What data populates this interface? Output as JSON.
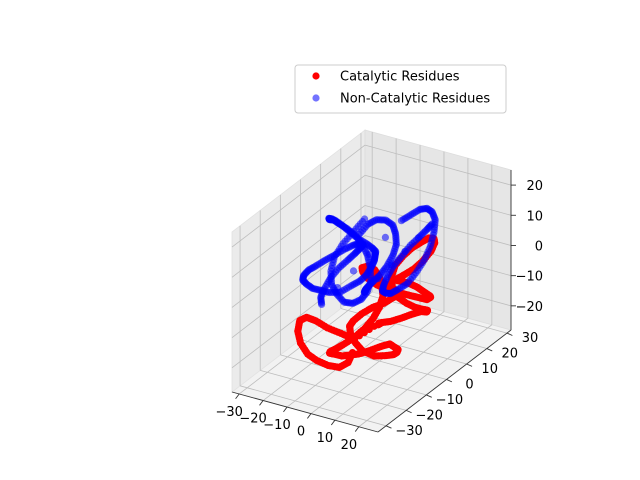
{
  "chart_data": {
    "type": "scatter",
    "projection": "3d",
    "title": "",
    "xlabel": "",
    "ylabel": "",
    "zlabel": "",
    "grid": true,
    "legend_position": "top-right",
    "axes": {
      "x": {
        "ticks": [
          -30,
          -20,
          -10,
          0,
          10,
          20
        ],
        "range": [
          -33,
          28
        ]
      },
      "y": {
        "ticks": [
          -30,
          -20,
          -10,
          0,
          10,
          20,
          30
        ],
        "range": [
          -34,
          32
        ]
      },
      "z": {
        "ticks": [
          -20,
          -10,
          0,
          10,
          20
        ],
        "range": [
          -28,
          25
        ]
      }
    },
    "series": [
      {
        "name": "Catalytic Residues",
        "color": "#ff0000",
        "alpha": 1.0,
        "marker": "circle",
        "points": [
          [
            10,
            -18,
            13
          ],
          [
            12,
            -16,
            10
          ],
          [
            14,
            -13,
            7
          ],
          [
            15,
            -10,
            4
          ],
          [
            14,
            -7,
            1
          ],
          [
            12,
            -5,
            -1
          ],
          [
            9,
            -4,
            -3
          ],
          [
            6,
            -5,
            -5
          ],
          [
            3,
            -7,
            -6
          ],
          [
            1,
            -10,
            -7
          ],
          [
            0,
            -13,
            -8
          ],
          [
            1,
            -16,
            -8
          ],
          [
            3,
            -18,
            -9
          ],
          [
            6,
            -19,
            -11
          ],
          [
            9,
            -19,
            -13
          ],
          [
            12,
            -17,
            -15
          ],
          [
            14,
            -14,
            -16
          ],
          [
            15,
            -11,
            -17
          ],
          [
            14,
            -8,
            -18
          ],
          [
            12,
            -5,
            -19
          ],
          [
            9,
            -3,
            -20
          ],
          [
            6,
            -2,
            -20
          ],
          [
            3,
            -3,
            -21
          ],
          [
            0,
            -5,
            -22
          ],
          [
            -2,
            -8,
            -22
          ],
          [
            -3,
            -11,
            -21
          ],
          [
            -4,
            -14,
            -20
          ],
          [
            -5,
            -17,
            -18
          ],
          [
            -4,
            -20,
            -16
          ],
          [
            -2,
            -22,
            -14
          ],
          [
            1,
            -23,
            -12
          ],
          [
            4,
            -23,
            -10
          ],
          [
            7,
            -21,
            -8
          ],
          [
            9,
            -18,
            -6
          ],
          [
            10,
            -15,
            -4
          ],
          [
            10,
            -12,
            -2
          ],
          [
            9,
            -9,
            0
          ],
          [
            7,
            -7,
            2
          ],
          [
            5,
            -6,
            4
          ],
          [
            3,
            -6,
            6
          ],
          [
            2,
            -8,
            8
          ],
          [
            2,
            -11,
            9
          ],
          [
            4,
            -13,
            9
          ],
          [
            7,
            -14,
            8
          ],
          [
            10,
            -13,
            6
          ],
          [
            13,
            -11,
            4
          ],
          [
            16,
            -8,
            2
          ],
          [
            18,
            -5,
            0
          ],
          [
            19,
            -2,
            -2
          ],
          [
            19,
            1,
            -4
          ],
          [
            18,
            4,
            -5
          ],
          [
            16,
            6,
            -6
          ],
          [
            13,
            7,
            -6
          ],
          [
            10,
            7,
            -5
          ],
          [
            8,
            5,
            -3
          ],
          [
            7,
            2,
            -1
          ],
          [
            8,
            -1,
            1
          ],
          [
            10,
            -3,
            3
          ],
          [
            13,
            -3,
            5
          ],
          [
            16,
            -2,
            7
          ],
          [
            18,
            0,
            9
          ],
          [
            19,
            3,
            11
          ],
          [
            18,
            6,
            12
          ],
          [
            16,
            8,
            12
          ],
          [
            13,
            9,
            11
          ],
          [
            10,
            9,
            9
          ],
          [
            7,
            8,
            7
          ],
          [
            5,
            6,
            5
          ],
          [
            4,
            3,
            3
          ],
          [
            5,
            0,
            1
          ],
          [
            7,
            -2,
            -1
          ],
          [
            10,
            -3,
            -3
          ],
          [
            13,
            -2,
            -5
          ],
          [
            15,
            0,
            -7
          ],
          [
            16,
            3,
            -9
          ],
          [
            15,
            6,
            -11
          ],
          [
            13,
            8,
            -13
          ],
          [
            10,
            9,
            -14
          ],
          [
            7,
            8,
            -15
          ],
          [
            4,
            6,
            -16
          ],
          [
            2,
            3,
            -16
          ],
          [
            1,
            0,
            -15
          ],
          [
            2,
            -3,
            -14
          ],
          [
            4,
            -5,
            -12
          ],
          [
            -2,
            -10,
            -16
          ],
          [
            -6,
            -12,
            -14
          ],
          [
            -10,
            -14,
            -12
          ],
          [
            -14,
            -15,
            -10
          ],
          [
            -17,
            -16,
            -9
          ],
          [
            -19,
            -17,
            -10
          ],
          [
            -19,
            -18,
            -13
          ],
          [
            -17,
            -19,
            -16
          ],
          [
            -14,
            -19,
            -19
          ],
          [
            -11,
            -18,
            -21
          ],
          [
            -8,
            -16,
            -23
          ],
          [
            -5,
            -14,
            -24
          ],
          [
            -3,
            -12,
            -23
          ],
          [
            -2,
            -11,
            -20
          ]
        ]
      },
      {
        "name": "Non-Catalytic Residues",
        "color": "#0000ff",
        "alpha": 0.55,
        "marker": "circle",
        "points": [
          [
            -18,
            14,
            8
          ],
          [
            -20,
            11,
            5
          ],
          [
            -22,
            8,
            2
          ],
          [
            -23,
            5,
            -1
          ],
          [
            -22,
            2,
            -4
          ],
          [
            -20,
            0,
            -7
          ],
          [
            -17,
            -1,
            -9
          ],
          [
            -14,
            -1,
            -11
          ],
          [
            -12,
            1,
            -12
          ],
          [
            -11,
            4,
            -12
          ],
          [
            -11,
            7,
            -11
          ],
          [
            -12,
            10,
            -9
          ],
          [
            -14,
            12,
            -6
          ],
          [
            -16,
            13,
            -3
          ],
          [
            -18,
            13,
            0
          ],
          [
            -20,
            12,
            3
          ],
          [
            -22,
            10,
            6
          ],
          [
            -23,
            7,
            9
          ],
          [
            -23,
            4,
            12
          ],
          [
            -22,
            1,
            14
          ],
          [
            -20,
            -1,
            15
          ],
          [
            -17,
            -2,
            16
          ],
          [
            -14,
            -2,
            15
          ],
          [
            -12,
            -1,
            13
          ],
          [
            -10,
            1,
            10
          ],
          [
            -9,
            4,
            7
          ],
          [
            -9,
            7,
            4
          ],
          [
            -10,
            10,
            1
          ],
          [
            -12,
            12,
            -2
          ],
          [
            -14,
            14,
            -5
          ],
          [
            -16,
            15,
            -8
          ],
          [
            -18,
            15,
            -11
          ],
          [
            -20,
            14,
            -13
          ],
          [
            -22,
            12,
            -14
          ],
          [
            -24,
            9,
            -15
          ],
          [
            -26,
            6,
            -14
          ],
          [
            -27,
            3,
            -12
          ],
          [
            -28,
            0,
            -10
          ],
          [
            -28,
            -3,
            -7
          ],
          [
            -27,
            -6,
            -4
          ],
          [
            -25,
            -8,
            -1
          ],
          [
            -22,
            -9,
            2
          ],
          [
            -19,
            -9,
            4
          ],
          [
            -16,
            -8,
            6
          ],
          [
            -14,
            -6,
            7
          ],
          [
            -12,
            -3,
            8
          ],
          [
            -11,
            0,
            8
          ],
          [
            -11,
            3,
            7
          ],
          [
            -12,
            6,
            5
          ],
          [
            -14,
            8,
            3
          ],
          [
            -16,
            9,
            1
          ],
          [
            -18,
            9,
            -1
          ],
          [
            -20,
            8,
            -3
          ],
          [
            -22,
            6,
            -5
          ],
          [
            -23,
            3,
            -7
          ],
          [
            -23,
            0,
            -9
          ],
          [
            -22,
            -3,
            -10
          ],
          [
            -20,
            -5,
            -11
          ],
          [
            -6,
            18,
            8
          ],
          [
            -3,
            19,
            10
          ],
          [
            0,
            20,
            12
          ],
          [
            3,
            20,
            13
          ],
          [
            6,
            19,
            13
          ],
          [
            9,
            17,
            12
          ],
          [
            11,
            14,
            10
          ],
          [
            12,
            11,
            7
          ],
          [
            12,
            8,
            4
          ],
          [
            11,
            5,
            1
          ],
          [
            9,
            3,
            -2
          ],
          [
            6,
            2,
            -4
          ],
          [
            3,
            2,
            -6
          ],
          [
            0,
            3,
            -7
          ],
          [
            -3,
            5,
            -8
          ],
          [
            -5,
            8,
            -8
          ],
          [
            -6,
            11,
            -7
          ],
          [
            -6,
            14,
            -5
          ],
          [
            -5,
            17,
            -3
          ],
          [
            -3,
            19,
            0
          ],
          [
            0,
            20,
            3
          ],
          [
            3,
            20,
            6
          ],
          [
            6,
            19,
            9
          ],
          [
            -8,
            2,
            -8
          ],
          [
            -6,
            0,
            -6
          ],
          [
            -4,
            -2,
            -4
          ],
          [
            -2,
            -3,
            -2
          ],
          [
            0,
            -3,
            0
          ],
          [
            2,
            -2,
            2
          ],
          [
            3,
            0,
            4
          ],
          [
            3,
            3,
            6
          ],
          [
            2,
            6,
            8
          ],
          [
            0,
            8,
            10
          ],
          [
            -2,
            9,
            12
          ],
          [
            -5,
            9,
            13
          ],
          [
            -8,
            8,
            13
          ],
          [
            -10,
            6,
            12
          ],
          [
            -11,
            3,
            10
          ]
        ]
      }
    ]
  }
}
